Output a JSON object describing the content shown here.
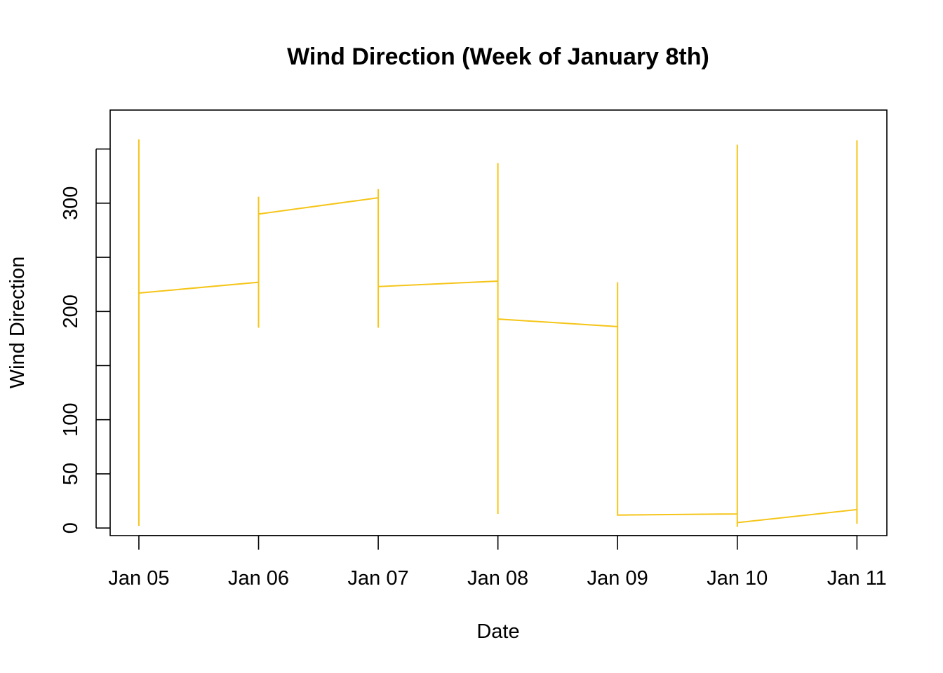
{
  "chart_data": {
    "type": "line",
    "title": "Wind Direction (Week of January 8th)",
    "xlabel": "Date",
    "ylabel": "Wind Direction",
    "x_range": [
      -0.24,
      6.25
    ],
    "ylim": [
      -7,
      386
    ],
    "x_ticks": [
      {
        "value": 0,
        "label": "Jan 05"
      },
      {
        "value": 1,
        "label": "Jan 06"
      },
      {
        "value": 2,
        "label": "Jan 07"
      },
      {
        "value": 3,
        "label": "Jan 08"
      },
      {
        "value": 4,
        "label": "Jan 09"
      },
      {
        "value": 5,
        "label": "Jan 10"
      },
      {
        "value": 6,
        "label": "Jan 11"
      }
    ],
    "y_ticks": [
      {
        "value": 0,
        "label": "0"
      },
      {
        "value": 50,
        "label": "50"
      },
      {
        "value": 100,
        "label": "100"
      },
      {
        "value": 150,
        "label": ""
      },
      {
        "value": 200,
        "label": "200"
      },
      {
        "value": 250,
        "label": ""
      },
      {
        "value": 300,
        "label": "300"
      },
      {
        "value": 350,
        "label": ""
      }
    ],
    "line_color": "#F5C518",
    "grid": false,
    "series": [
      {
        "x": [
          0,
          0,
          0,
          1,
          1,
          1,
          1,
          2,
          2,
          2,
          2,
          3,
          3,
          3,
          3,
          4,
          4,
          4,
          4,
          5,
          5,
          5,
          5,
          6,
          6,
          6
        ],
        "y": [
          2,
          359,
          217,
          227,
          185,
          306,
          290,
          305,
          313,
          185,
          223,
          228,
          337,
          13,
          193,
          186,
          227,
          12,
          12,
          13,
          354,
          1,
          5,
          17,
          358,
          4
        ]
      }
    ]
  }
}
